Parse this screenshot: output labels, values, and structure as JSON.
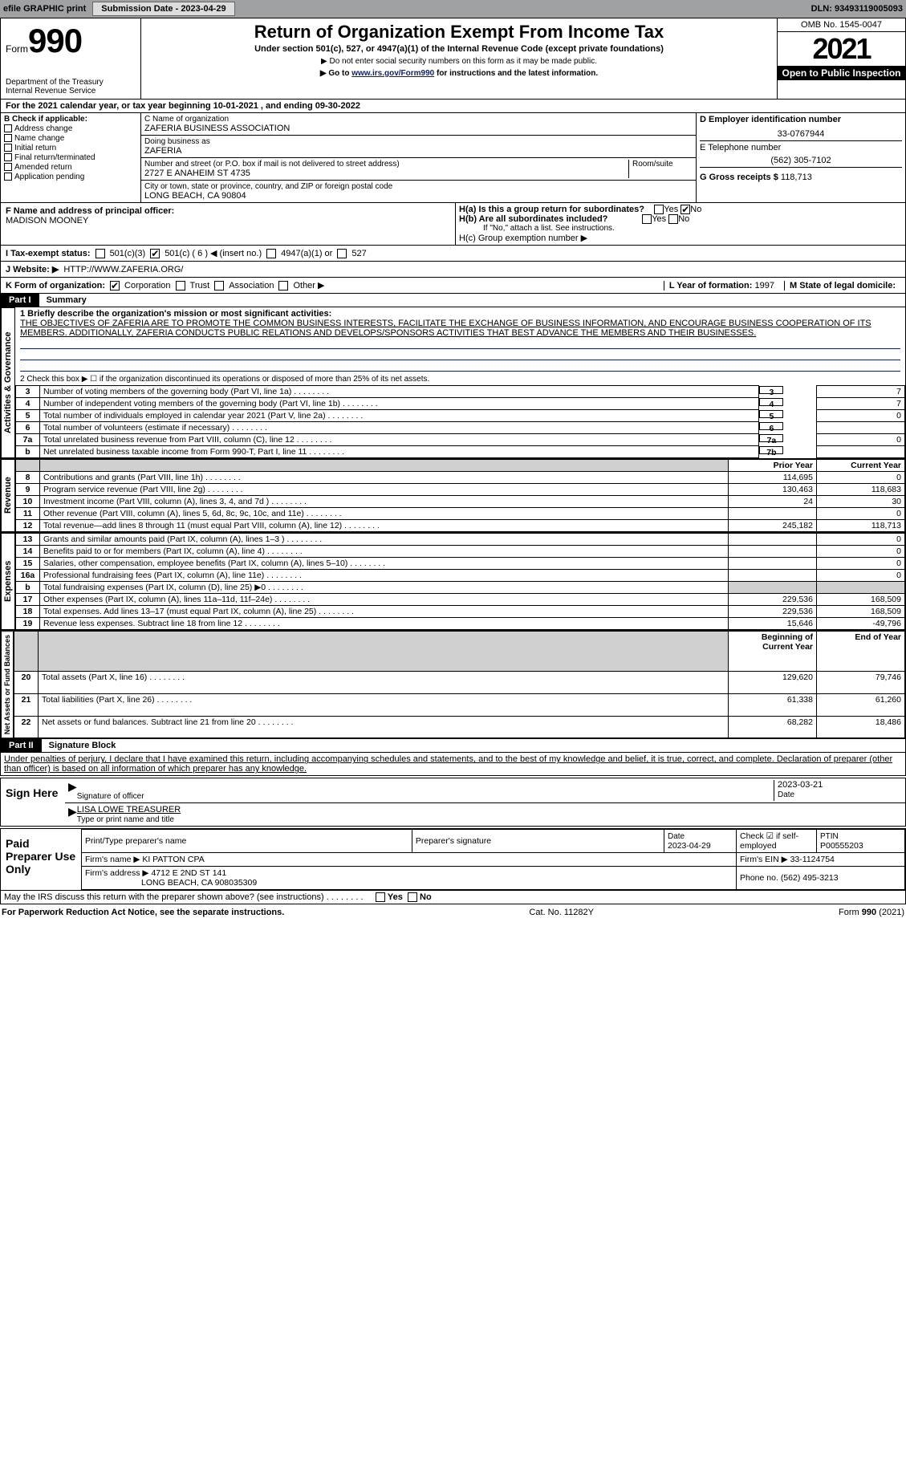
{
  "topbar": {
    "efile": "efile GRAPHIC print",
    "subdate_label": "Submission Date - 2023-04-29",
    "dln": "DLN: 93493119005093"
  },
  "header": {
    "form_word": "Form",
    "form_no": "990",
    "dept": "Department of the Treasury\nInternal Revenue Service",
    "title": "Return of Organization Exempt From Income Tax",
    "sub1": "Under section 501(c), 527, or 4947(a)(1) of the Internal Revenue Code (except private foundations)",
    "sub2": "▶ Do not enter social security numbers on this form as it may be made public.",
    "sub3_pre": "▶ Go to ",
    "sub3_link": "www.irs.gov/Form990",
    "sub3_post": " for instructions and the latest information.",
    "omb": "OMB No. 1545-0047",
    "year": "2021",
    "open": "Open to Public Inspection"
  },
  "a": {
    "text": "For the 2021 calendar year, or tax year beginning 10-01-2021    , and ending 09-30-2022"
  },
  "b": {
    "label": "B Check if applicable:",
    "items": [
      "Address change",
      "Name change",
      "Initial return",
      "Final return/terminated",
      "Amended return",
      "Application pending"
    ]
  },
  "c": {
    "name_label": "C Name of organization",
    "name": "ZAFERIA BUSINESS ASSOCIATION",
    "dba_label": "Doing business as",
    "dba": "ZAFERIA",
    "street_label": "Number and street (or P.O. box if mail is not delivered to street address)",
    "room": "Room/suite",
    "street": "2727 E ANAHEIM ST 4735",
    "city_label": "City or town, state or province, country, and ZIP or foreign postal code",
    "city": "LONG BEACH, CA  90804"
  },
  "d": {
    "label": "D Employer identification number",
    "val": "33-0767944"
  },
  "e": {
    "label": "E Telephone number",
    "val": "(562) 305-7102"
  },
  "g": {
    "label": "G Gross receipts $",
    "val": "118,713"
  },
  "f": {
    "label": "F  Name and address of principal officer:",
    "name": "MADISON MOONEY"
  },
  "h": {
    "a": "H(a)  Is this a group return for subordinates?",
    "b": "H(b)  Are all subordinates included?",
    "note": "If \"No,\" attach a list. See instructions.",
    "c": "H(c)  Group exemption number ▶",
    "yes": "Yes",
    "no": "No"
  },
  "i": {
    "label": "I    Tax-exempt status:",
    "opts": [
      "501(c)(3)",
      "501(c) ( 6 ) ◀ (insert no.)",
      "4947(a)(1) or",
      "527"
    ]
  },
  "j": {
    "label": "J   Website: ▶",
    "val": "HTTP://WWW.ZAFERIA.ORG/"
  },
  "k": {
    "label": "K Form of organization:",
    "opts": [
      "Corporation",
      "Trust",
      "Association",
      "Other ▶"
    ]
  },
  "l": {
    "label": "L Year of formation:",
    "val": "1997"
  },
  "m": {
    "label": "M State of legal domicile:",
    "val": ""
  },
  "part1": {
    "header": "Part I",
    "title": "Summary",
    "q1_label": "1  Briefly describe the organization's mission or most significant activities:",
    "mission": "THE OBJECTIVES OF ZAFERIA ARE TO PROMOTE THE COMMON BUSINESS INTERESTS, FACILITATE THE EXCHANGE OF BUSINESS INFORMATION, AND ENCOURAGE BUSINESS COOPERATION OF ITS MEMBERS. ADDITIONALLY, ZAFERIA CONDUCTS PUBLIC RELATIONS AND DEVELOPS/SPONSORS ACTIVITIES THAT BEST ADVANCE THE MEMBERS AND THEIR BUSINESSES.",
    "q2": "2   Check this box ▶ ☐  if the organization discontinued its operations or disposed of more than 25% of its net assets.",
    "rows_ag": [
      {
        "n": "3",
        "t": "Number of voting members of the governing body (Part VI, line 1a)",
        "b": "3",
        "v": "7"
      },
      {
        "n": "4",
        "t": "Number of independent voting members of the governing body (Part VI, line 1b)",
        "b": "4",
        "v": "7"
      },
      {
        "n": "5",
        "t": "Total number of individuals employed in calendar year 2021 (Part V, line 2a)",
        "b": "5",
        "v": "0"
      },
      {
        "n": "6",
        "t": "Total number of volunteers (estimate if necessary)",
        "b": "6",
        "v": ""
      },
      {
        "n": "7a",
        "t": "Total unrelated business revenue from Part VIII, column (C), line 12",
        "b": "7a",
        "v": "0"
      },
      {
        "n": "b",
        "t": "Net unrelated business taxable income from Form 990-T, Part I, line 11",
        "b": "7b",
        "v": ""
      }
    ],
    "yrhdr": [
      "Prior Year",
      "Current Year"
    ],
    "rev": [
      {
        "n": "8",
        "t": "Contributions and grants (Part VIII, line 1h)",
        "p": "114,695",
        "c": "0"
      },
      {
        "n": "9",
        "t": "Program service revenue (Part VIII, line 2g)",
        "p": "130,463",
        "c": "118,683"
      },
      {
        "n": "10",
        "t": "Investment income (Part VIII, column (A), lines 3, 4, and 7d )",
        "p": "24",
        "c": "30"
      },
      {
        "n": "11",
        "t": "Other revenue (Part VIII, column (A), lines 5, 6d, 8c, 9c, 10c, and 11e)",
        "p": "",
        "c": "0"
      },
      {
        "n": "12",
        "t": "Total revenue—add lines 8 through 11 (must equal Part VIII, column (A), line 12)",
        "p": "245,182",
        "c": "118,713"
      }
    ],
    "exp": [
      {
        "n": "13",
        "t": "Grants and similar amounts paid (Part IX, column (A), lines 1–3 )",
        "p": "",
        "c": "0"
      },
      {
        "n": "14",
        "t": "Benefits paid to or for members (Part IX, column (A), line 4)",
        "p": "",
        "c": "0"
      },
      {
        "n": "15",
        "t": "Salaries, other compensation, employee benefits (Part IX, column (A), lines 5–10)",
        "p": "",
        "c": "0"
      },
      {
        "n": "16a",
        "t": "Professional fundraising fees (Part IX, column (A), line 11e)",
        "p": "",
        "c": "0"
      },
      {
        "n": "b",
        "t": "Total fundraising expenses (Part IX, column (D), line 25) ▶0",
        "p": "shade",
        "c": "shade"
      },
      {
        "n": "17",
        "t": "Other expenses (Part IX, column (A), lines 11a–11d, 11f–24e)",
        "p": "229,536",
        "c": "168,509"
      },
      {
        "n": "18",
        "t": "Total expenses. Add lines 13–17 (must equal Part IX, column (A), line 25)",
        "p": "229,536",
        "c": "168,509"
      },
      {
        "n": "19",
        "t": "Revenue less expenses. Subtract line 18 from line 12",
        "p": "15,646",
        "c": "-49,796"
      }
    ],
    "nethdr": [
      "Beginning of Current Year",
      "End of Year"
    ],
    "net": [
      {
        "n": "20",
        "t": "Total assets (Part X, line 16)",
        "p": "129,620",
        "c": "79,746"
      },
      {
        "n": "21",
        "t": "Total liabilities (Part X, line 26)",
        "p": "61,338",
        "c": "61,260"
      },
      {
        "n": "22",
        "t": "Net assets or fund balances. Subtract line 21 from line 20",
        "p": "68,282",
        "c": "18,486"
      }
    ],
    "tabs": [
      "Activities & Governance",
      "Revenue",
      "Expenses",
      "Net Assets or Fund Balances"
    ]
  },
  "part2": {
    "header": "Part II",
    "title": "Signature Block",
    "decl": "Under penalties of perjury, I declare that I have examined this return, including accompanying schedules and statements, and to the best of my knowledge and belief, it is true, correct, and complete. Declaration of preparer (other than officer) is based on all information of which preparer has any knowledge.",
    "sign": "Sign Here",
    "sig_officer": "Signature of officer",
    "date": "Date",
    "date_val": "2023-03-21",
    "name": "LISA LOWE  TREASURER",
    "name_label": "Type or print name and title",
    "paid_label": "Paid Preparer Use Only",
    "paid_cols": [
      "Print/Type preparer's name",
      "Preparer's signature",
      "Date",
      "Check ☑ if self-employed",
      "PTIN"
    ],
    "paid_row": [
      "",
      "",
      "2023-04-29",
      "",
      "P00555203"
    ],
    "firm_name_label": "Firm's name    ▶",
    "firm_name": "KI PATTON CPA",
    "firm_ein_label": "Firm's EIN ▶",
    "firm_ein": "33-1124754",
    "firm_addr_label": "Firm's address ▶",
    "firm_addr1": "4712 E 2ND ST 141",
    "firm_addr2": "LONG BEACH, CA  908035309",
    "phone_label": "Phone no.",
    "phone": "(562) 495-3213",
    "discuss": "May the IRS discuss this return with the preparer shown above? (see instructions)"
  },
  "footer": {
    "left": "For Paperwork Reduction Act Notice, see the separate instructions.",
    "mid": "Cat. No. 11282Y",
    "right": "Form 990 (2021)"
  }
}
